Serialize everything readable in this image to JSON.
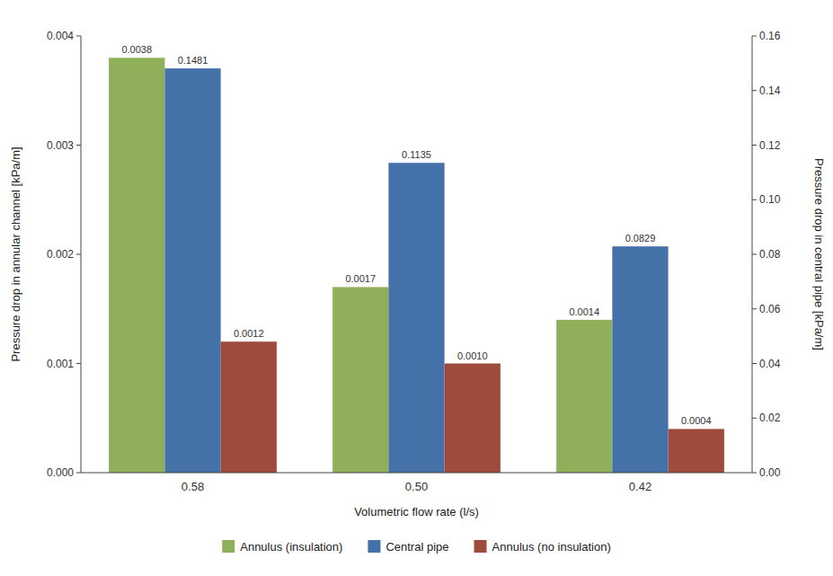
{
  "chart_data": {
    "type": "bar",
    "xlabel": "Volumetric flow rate (l/s)",
    "ylabel": "Pressure drop in annular channel [kPa/m]",
    "y2label": "Pressure drop in central pipe [kPa/m]",
    "categories": [
      "0.58",
      "0.50",
      "0.42"
    ],
    "series": [
      {
        "name": "Annulus (insulation)",
        "color": "#8faf5a",
        "values": [
          0.0038,
          0.0017,
          0.0014
        ],
        "value_labels": [
          "0.0038",
          "0.0017",
          "0.0014"
        ]
      },
      {
        "name": "Central pipe",
        "color": "#4472a8",
        "axis": "y2",
        "values": [
          0.1481,
          0.1135,
          0.0829
        ],
        "value_labels": [
          "0.1481",
          "0.1135",
          "0.0829"
        ]
      },
      {
        "name": "Annulus (no insulation)",
        "color": "#9e4a3c",
        "values": [
          0.0012,
          0.001,
          0.0004
        ],
        "value_labels": [
          "0.0012",
          "0.0010",
          "0.0004"
        ]
      }
    ],
    "ylim": [
      0,
      0.004
    ],
    "yticks": [
      {
        "value": 0,
        "label": "0.000"
      },
      0.001,
      0.002,
      0.003,
      0.004
    ],
    "y2lim": [
      0,
      0.16
    ],
    "y2ticks": [
      {
        "value": 0,
        "label": "0.00"
      },
      0.02,
      0.04,
      0.06,
      0.08,
      {
        "value": 0.1,
        "label": "0.10"
      },
      0.12,
      0.14,
      0.16
    ],
    "data_labels": true,
    "grid": false,
    "legend": "bottom"
  }
}
